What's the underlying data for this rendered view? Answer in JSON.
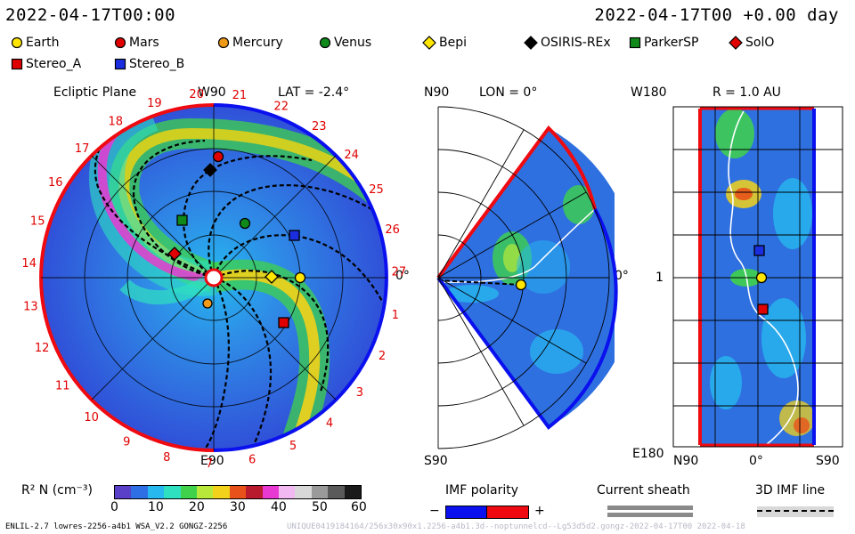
{
  "header": {
    "time_left": "2022-04-17T00:00",
    "time_right": "2022-04-17T00 +0.00 day"
  },
  "legend": [
    {
      "label": "Earth",
      "shape": "circle",
      "color": "#ffe600"
    },
    {
      "label": "Mars",
      "shape": "circle",
      "color": "#e00000"
    },
    {
      "label": "Mercury",
      "shape": "circle",
      "color": "#f09a1a"
    },
    {
      "label": "Venus",
      "shape": "circle",
      "color": "#0f8a1a"
    },
    {
      "label": "Bepi",
      "shape": "diamond",
      "color": "#ffe600"
    },
    {
      "label": "OSIRIS-REx",
      "shape": "diamond",
      "color": "#000000"
    },
    {
      "label": "ParkerSP",
      "shape": "square",
      "color": "#0f8a1a"
    },
    {
      "label": "SolO",
      "shape": "diamond",
      "color": "#e00000"
    },
    {
      "label": "Stereo_A",
      "shape": "square",
      "color": "#e00000"
    },
    {
      "label": "Stereo_B",
      "shape": "square",
      "color": "#1a2ee0"
    }
  ],
  "panels": {
    "ecliptic": {
      "title": "Ecliptic Plane",
      "lat": "LAT = -2.4°",
      "top": "W90",
      "bottom": "E90",
      "right": "0°",
      "carrington": [
        "1",
        "2",
        "3",
        "4",
        "5",
        "6",
        "7",
        "8",
        "9",
        "10",
        "11",
        "12",
        "13",
        "14",
        "15",
        "16",
        "17",
        "18",
        "19",
        "20",
        "21",
        "22",
        "23",
        "24",
        "25",
        "26",
        "27"
      ]
    },
    "meridional": {
      "lon": "LON = 0°",
      "top": "N90",
      "bottom": "S90",
      "right": "0°"
    },
    "radial": {
      "title": "R = 1.0 AU",
      "top": "W180",
      "bottom": "E180",
      "left_mid": "1",
      "bx_left": "N90",
      "bx_mid": "0°",
      "bx_right": "S90"
    }
  },
  "colorbar": {
    "label": "R² N (cm⁻³)",
    "ticks": [
      "0",
      "10",
      "20",
      "30",
      "40",
      "50",
      "60"
    ],
    "colors": [
      "#5a3fc8",
      "#2f6fe6",
      "#26b8ef",
      "#2fe0c0",
      "#3fd24a",
      "#b8e83a",
      "#f2d21a",
      "#e8521a",
      "#b81a2e",
      "#e83ad2",
      "#f2b8f2",
      "#d8d8d8",
      "#9a9a9a",
      "#5a5a5a",
      "#1a1a1a"
    ]
  },
  "imf": {
    "title": "IMF polarity",
    "minus": "−",
    "plus": "+",
    "neg_color": "#0a10ee",
    "pos_color": "#ee0a10"
  },
  "sheath": {
    "title": "Current sheath"
  },
  "imfline": {
    "title": "3D IMF line"
  },
  "footer": {
    "left": "ENLIL-2.7 lowres-2256-a4b1 WSA_V2.2 GONGZ-2256",
    "right": "UNIQUE0419184164/256x30x90x1.2256-a4b1.3d--noptunnelcd--Lg53d5d2.gongz-2022-04-17T00   2022-04-18"
  }
}
